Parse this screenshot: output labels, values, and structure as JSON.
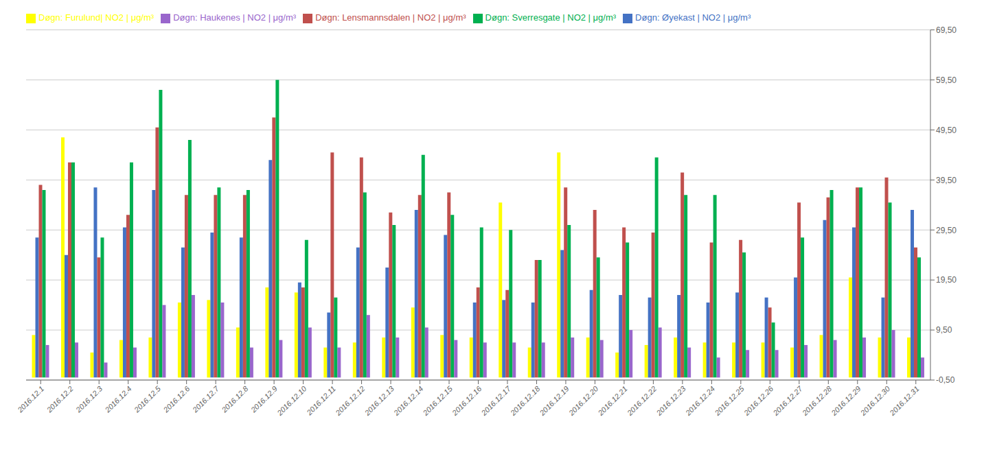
{
  "chart_data": {
    "type": "bar",
    "categories": [
      "2016.12.1",
      "2016.12.2",
      "2016.12.3",
      "2016.12.4",
      "2016.12.5",
      "2016.12.6",
      "2016.12.7",
      "2016.12.8",
      "2016.12.9",
      "2016.12.10",
      "2016.12.11",
      "2016.12.12",
      "2016.12.13",
      "2016.12.14",
      "2016.12.15",
      "2016.12.16",
      "2016.12.17",
      "2016.12.18",
      "2016.12.19",
      "2016.12.20",
      "2016.12.21",
      "2016.12.22",
      "2016.12.23",
      "2016.12.24",
      "2016.12.25",
      "2016.12.26",
      "2016.12.27",
      "2016.12.28",
      "2016.12.29",
      "2016.12.30",
      "2016.12.31"
    ],
    "series": [
      {
        "name": "Døgn: Furulund| NO2 | μg/m³",
        "color": "#FFFF00",
        "values": [
          8.5,
          48.0,
          5.0,
          7.5,
          8.0,
          15.0,
          15.5,
          10.0,
          18.0,
          17.0,
          6.0,
          7.0,
          8.0,
          14.0,
          8.5,
          8.0,
          35.0,
          6.0,
          45.0,
          8.0,
          5.0,
          6.5,
          8.0,
          7.0,
          7.0,
          7.0,
          6.0,
          8.5,
          20.0,
          8.0,
          8.0
        ]
      },
      {
        "name": "Døgn: Øyekast | NO2 | μg/m³",
        "color": "#4472C4",
        "values": [
          28.0,
          24.5,
          38.0,
          30.0,
          37.5,
          26.0,
          29.0,
          28.0,
          43.5,
          19.0,
          13.0,
          26.0,
          22.0,
          33.5,
          28.5,
          15.0,
          15.5,
          15.0,
          25.5,
          17.5,
          16.5,
          16.0,
          16.5,
          15.0,
          17.0,
          16.0,
          20.0,
          31.5,
          30.0,
          16.0,
          33.5
        ]
      },
      {
        "name": "Døgn: Lensmannsdalen | NO2 | μg/m³",
        "color": "#C0504D",
        "values": [
          38.5,
          43.0,
          24.0,
          32.5,
          50.0,
          36.5,
          36.5,
          36.5,
          52.0,
          18.0,
          45.0,
          44.0,
          33.0,
          36.5,
          37.0,
          18.0,
          17.5,
          23.5,
          38.0,
          33.5,
          30.0,
          29.0,
          41.0,
          27.0,
          27.5,
          14.0,
          35.0,
          36.0,
          38.0,
          40.0,
          26.0
        ]
      },
      {
        "name": "Døgn: Sverresgate  | NO2 | μg/m³",
        "color": "#00B050",
        "values": [
          37.5,
          43.0,
          28.0,
          43.0,
          57.5,
          47.5,
          38.0,
          37.5,
          59.5,
          27.5,
          16.0,
          37.0,
          30.5,
          44.5,
          32.5,
          30.0,
          29.5,
          23.5,
          30.5,
          24.0,
          27.0,
          44.0,
          36.5,
          36.5,
          25.0,
          11.0,
          28.0,
          37.5,
          38.0,
          35.0,
          24.0
        ]
      },
      {
        "name": "Døgn: Haukenes | NO2 | μg/m³",
        "color": "#9966CC",
        "values": [
          6.5,
          7.0,
          3.0,
          6.0,
          14.5,
          16.5,
          15.0,
          6.0,
          7.5,
          10.0,
          6.0,
          12.5,
          8.0,
          10.0,
          7.5,
          7.0,
          7.0,
          7.0,
          8.0,
          7.5,
          9.5,
          10.0,
          6.0,
          4.0,
          5.5,
          5.5,
          6.5,
          7.5,
          8.0,
          9.5,
          4.0
        ]
      }
    ],
    "ylim": [
      -0.5,
      69.5
    ],
    "yticks": [
      {
        "value": -0.5,
        "label": "-0,50"
      },
      {
        "value": 9.5,
        "label": "9,50"
      },
      {
        "value": 19.5,
        "label": "19,50"
      },
      {
        "value": 29.5,
        "label": "29,50"
      },
      {
        "value": 39.5,
        "label": "39,50"
      },
      {
        "value": 49.5,
        "label": "49,50"
      },
      {
        "value": 59.5,
        "label": "59,50"
      },
      {
        "value": 69.5,
        "label": "69,50"
      }
    ],
    "grid": true,
    "legend": "top left"
  }
}
